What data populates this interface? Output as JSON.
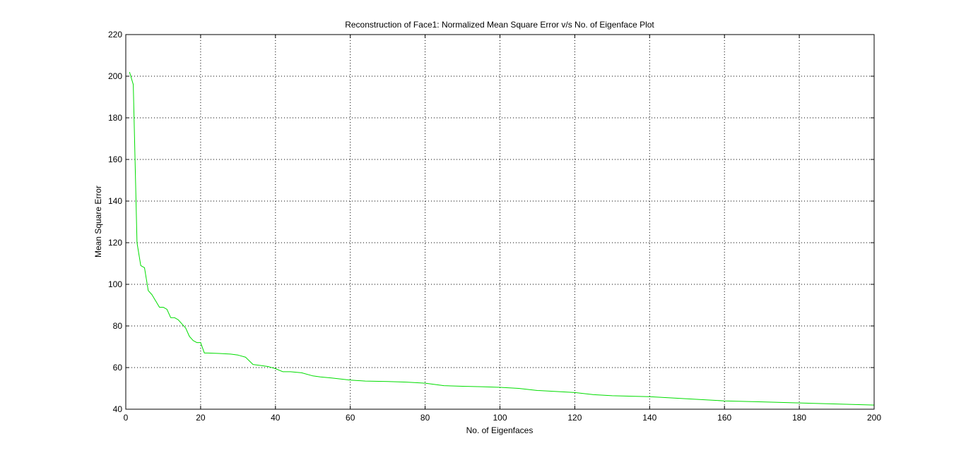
{
  "chart_data": {
    "type": "line",
    "title": "Reconstruction of Face1: Normalized Mean Square Error v/s No. of Eigenface Plot",
    "xlabel": "No. of Eigenfaces",
    "ylabel": "Mean Square Error",
    "xlim": [
      0,
      200
    ],
    "ylim": [
      40,
      220
    ],
    "xticks": [
      0,
      20,
      40,
      60,
      80,
      100,
      120,
      140,
      160,
      180,
      200
    ],
    "yticks": [
      40,
      60,
      80,
      100,
      120,
      140,
      160,
      180,
      200,
      220
    ],
    "grid": true,
    "grid_style": "dotted",
    "legend": "none",
    "series": [
      {
        "color": "#00dd00",
        "x": [
          1,
          2,
          3,
          4,
          5,
          6,
          7,
          8,
          9,
          10,
          11,
          12,
          13,
          14,
          15,
          16,
          17,
          18,
          19,
          20,
          21,
          22,
          25,
          28,
          30,
          32,
          34,
          36,
          38,
          40,
          42,
          44,
          47,
          50,
          52,
          55,
          60,
          64,
          70,
          75,
          80,
          85,
          90,
          95,
          100,
          105,
          110,
          115,
          120,
          125,
          130,
          140,
          150,
          160,
          170,
          180,
          190,
          200
        ],
        "y": [
          202,
          196,
          120,
          109,
          108,
          97,
          95,
          92,
          89,
          89,
          88,
          84,
          84,
          83,
          81,
          79,
          75,
          73,
          72,
          72,
          67,
          67,
          66.8,
          66.5,
          66,
          65,
          61.5,
          61,
          60.5,
          59.5,
          58,
          58,
          57.5,
          56,
          55.5,
          55,
          54,
          53.5,
          53.3,
          53,
          52.5,
          51.3,
          51,
          50.8,
          50.5,
          50,
          49,
          48.5,
          48,
          47,
          46.5,
          46,
          45,
          44,
          43.5,
          43,
          42.5,
          42
        ]
      }
    ]
  }
}
